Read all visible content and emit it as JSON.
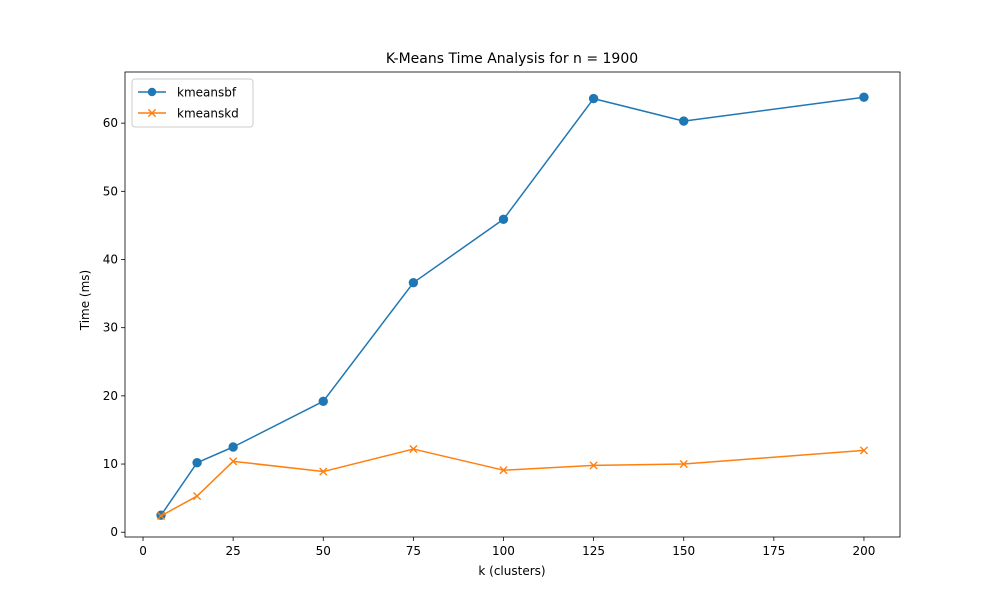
{
  "chart_data": {
    "type": "line",
    "title": "K-Means Time Analysis for n = 1900",
    "xlabel": "k (clusters)",
    "ylabel": "Time (ms)",
    "xlim": [
      -5,
      210
    ],
    "ylim": [
      -0.7,
      67.5
    ],
    "xticks": [
      0,
      25,
      50,
      75,
      100,
      125,
      150,
      175,
      200
    ],
    "yticks": [
      0,
      10,
      20,
      30,
      40,
      50,
      60
    ],
    "grid": false,
    "legend_position": "top-left",
    "x": [
      5,
      15,
      25,
      50,
      75,
      100,
      125,
      150,
      200
    ],
    "series": [
      {
        "name": "kmeansbf",
        "color": "#1f77b4",
        "marker": "circle",
        "values": [
          2.5,
          10.2,
          12.5,
          19.2,
          36.6,
          45.9,
          63.6,
          60.3,
          63.8
        ]
      },
      {
        "name": "kmeanskd",
        "color": "#ff7f0e",
        "marker": "x",
        "values": [
          2.4,
          5.3,
          10.4,
          8.9,
          12.2,
          9.1,
          9.8,
          10.0,
          12.0
        ]
      }
    ]
  }
}
